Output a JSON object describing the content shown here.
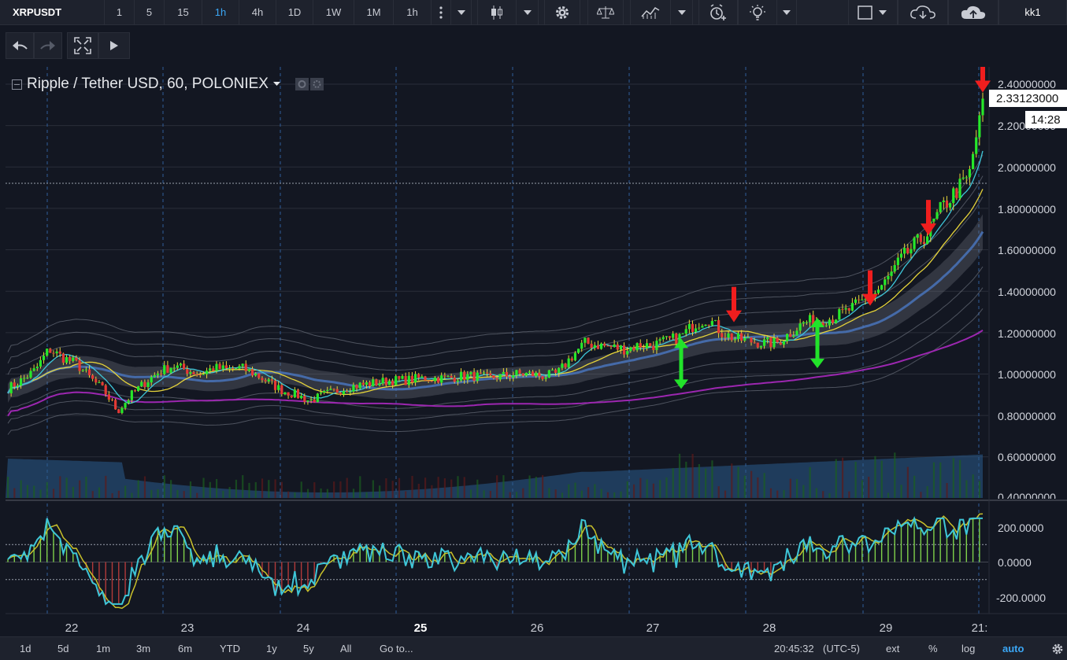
{
  "topbar": {
    "symbol": "XRPUSDT",
    "intervals": [
      "1",
      "5",
      "15",
      "1h",
      "4h",
      "1D",
      "1W",
      "1M",
      "1h"
    ],
    "active_interval": "1h",
    "user": "kk1"
  },
  "legend": {
    "title": "Ripple / Tether USD, 60, POLONIEX"
  },
  "price_axis": [
    "2.40000000",
    "2.20000000",
    "2.00000000",
    "1.80000000",
    "1.60000000",
    "1.40000000",
    "1.20000000",
    "1.00000000",
    "0.80000000",
    "0.60000000",
    "0.40000000"
  ],
  "last_price": "2.33123000",
  "countdown": "14:28",
  "osc_axis": [
    "200.0000",
    "0.0000",
    "-200.0000"
  ],
  "dates": [
    {
      "label": "22",
      "bold": false
    },
    {
      "label": "23",
      "bold": false
    },
    {
      "label": "24",
      "bold": false
    },
    {
      "label": "25",
      "bold": true
    },
    {
      "label": "26",
      "bold": false
    },
    {
      "label": "27",
      "bold": false
    },
    {
      "label": "28",
      "bold": false
    },
    {
      "label": "29",
      "bold": false
    },
    {
      "label": "21:",
      "bold": false
    }
  ],
  "bottombar": {
    "ranges": [
      "1d",
      "5d",
      "1m",
      "3m",
      "6m",
      "YTD",
      "1y",
      "5y",
      "All"
    ],
    "goto": "Go to...",
    "time": "20:45:32",
    "timezone": "(UTC-5)",
    "ext": "ext",
    "percent": "%",
    "log": "log",
    "auto": "auto"
  },
  "colors": {
    "background": "#131722",
    "up": "#26e82a",
    "down": "#e53935",
    "cci": "#3ec6d8",
    "signal": "#c8c02a",
    "volume": "#2a5b8c",
    "ma_purple": "#9c27b0"
  },
  "chart_data": {
    "type": "candlestick",
    "title": "Ripple / Tether USD, 60, POLONIEX",
    "x_dates": [
      "22",
      "23",
      "24",
      "25",
      "26",
      "27",
      "28",
      "29",
      "21:"
    ],
    "ylim": [
      0.4,
      2.45
    ],
    "close_anchor": [
      [
        0,
        0.93
      ],
      [
        1,
        0.97
      ],
      [
        2,
        1.02
      ],
      [
        3,
        1.12
      ],
      [
        4,
        1.08
      ],
      [
        5,
        1.05
      ],
      [
        6,
        0.98
      ],
      [
        7,
        0.92
      ],
      [
        8,
        0.82
      ],
      [
        9,
        0.9
      ],
      [
        10,
        0.96
      ],
      [
        11,
        1.01
      ],
      [
        12,
        1.04
      ],
      [
        13,
        1.02
      ],
      [
        14,
        1.0
      ],
      [
        15,
        1.03
      ],
      [
        16,
        1.02
      ],
      [
        17,
        1.03
      ],
      [
        18,
        1.0
      ],
      [
        19,
        0.96
      ],
      [
        20,
        0.92
      ],
      [
        21,
        0.9
      ],
      [
        22,
        0.87
      ],
      [
        23,
        0.9
      ],
      [
        24,
        0.92
      ],
      [
        25,
        0.94
      ],
      [
        26,
        0.95
      ],
      [
        27,
        0.96
      ],
      [
        28,
        0.97
      ],
      [
        29,
        0.97
      ],
      [
        30,
        0.98
      ],
      [
        31,
        0.98
      ],
      [
        32,
        0.98
      ],
      [
        33,
        0.99
      ],
      [
        34,
        0.99
      ],
      [
        35,
        0.98
      ],
      [
        36,
        0.99
      ],
      [
        37,
        1.0
      ],
      [
        38,
        1.0
      ],
      [
        39,
        0.99
      ],
      [
        40,
        1.0
      ],
      [
        41,
        1.08
      ],
      [
        42,
        1.15
      ],
      [
        43,
        1.14
      ],
      [
        44,
        1.13
      ],
      [
        45,
        1.12
      ],
      [
        46,
        1.14
      ],
      [
        47,
        1.14
      ],
      [
        48,
        1.16
      ],
      [
        49,
        1.18
      ],
      [
        50,
        1.24
      ],
      [
        51,
        1.27
      ],
      [
        52,
        1.2
      ],
      [
        53,
        1.17
      ],
      [
        54,
        1.16
      ],
      [
        55,
        1.15
      ],
      [
        56,
        1.15
      ],
      [
        57,
        1.2
      ],
      [
        58,
        1.25
      ],
      [
        59,
        1.26
      ],
      [
        60,
        1.27
      ],
      [
        61,
        1.3
      ],
      [
        62,
        1.34
      ],
      [
        63,
        1.38
      ],
      [
        64,
        1.45
      ],
      [
        65,
        1.55
      ],
      [
        66,
        1.62
      ],
      [
        67,
        1.68
      ],
      [
        68,
        1.8
      ],
      [
        69,
        1.88
      ],
      [
        70,
        1.95
      ],
      [
        71,
        2.33
      ]
    ],
    "volume": "bars, low",
    "oscillator": {
      "ylim": [
        -250,
        260
      ],
      "levels": [
        100,
        0,
        -100
      ]
    },
    "annotations": [
      {
        "type": "down-arrow",
        "color": "red",
        "near_date": "27",
        "price": 1.25
      },
      {
        "type": "down-arrow",
        "color": "red",
        "near_date": "29",
        "price": 1.33
      },
      {
        "type": "down-arrow",
        "color": "red",
        "near_date": "29",
        "price": 1.67
      },
      {
        "type": "down-arrow",
        "color": "red",
        "near_date": "21:",
        "price": 2.36
      },
      {
        "type": "updown-arrow",
        "color": "green",
        "near_date": "27",
        "price": 1.05
      },
      {
        "type": "updown-arrow",
        "color": "green",
        "near_date": "28",
        "price": 1.15
      }
    ]
  }
}
